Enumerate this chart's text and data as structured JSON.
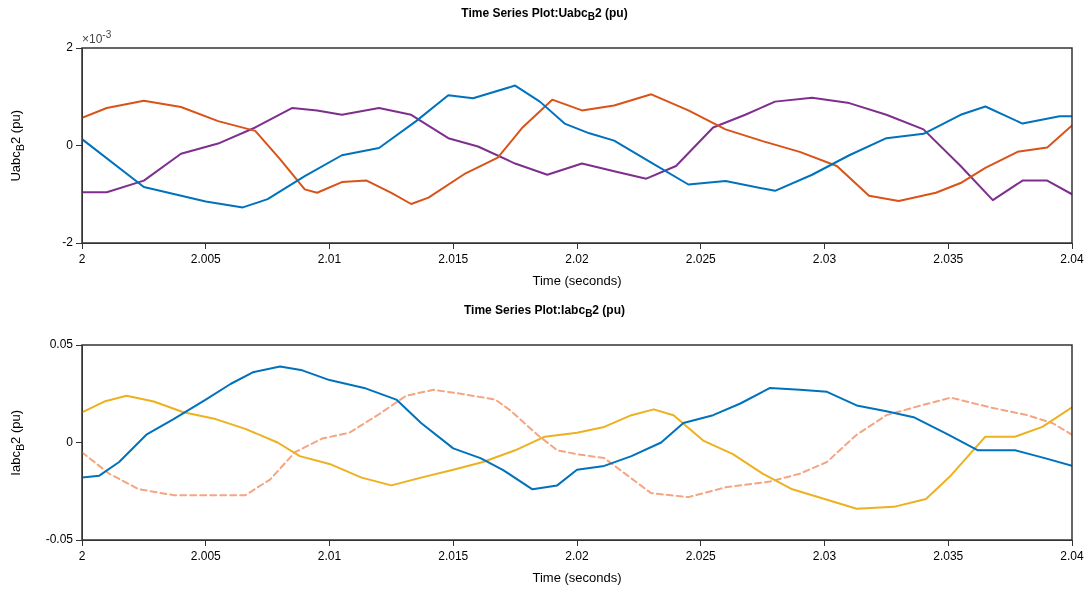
{
  "chart_data": [
    {
      "type": "line",
      "title": "Time Series Plot:Uabc$_{B}$2 (pu)",
      "xlabel": "Time (seconds)",
      "ylabel": "Uabc$_{B}$2 (pu)",
      "annotations": [
        "×10$^{-3}$"
      ],
      "xlim": [
        2,
        2.04
      ],
      "xticks": [
        2,
        2.005,
        2.01,
        2.015,
        2.02,
        2.025,
        2.03,
        2.035,
        2.04
      ],
      "ylim": [
        -2,
        2
      ],
      "yticks": [
        -2,
        0,
        2
      ],
      "grid": false,
      "legend": false,
      "marker": "none",
      "line_style": "solid",
      "series": [
        {
          "color": "#0072bd",
          "x": [
            2,
            2.0025,
            2.005,
            2.0065,
            2.0075,
            2.009,
            2.0105,
            2.012,
            2.0135,
            2.0148,
            2.0158,
            2.0175,
            2.0185,
            2.0195,
            2.0205,
            2.0215,
            2.023,
            2.0245,
            2.026,
            2.028,
            2.0295,
            2.031,
            2.0325,
            2.034,
            2.0355,
            2.0365,
            2.038,
            2.0395,
            2.04
          ],
          "values": [
            0.13,
            -0.85,
            -1.15,
            -1.27,
            -1.1,
            -0.63,
            -0.2,
            -0.05,
            0.5,
            1.03,
            0.97,
            1.23,
            0.9,
            0.45,
            0.25,
            0.1,
            -0.35,
            -0.8,
            -0.73,
            -0.93,
            -0.6,
            -0.2,
            0.15,
            0.24,
            0.63,
            0.8,
            0.45,
            0.6,
            0.6
          ]
        },
        {
          "color": "#d95319",
          "x": [
            2,
            2.001,
            2.0025,
            2.004,
            2.0055,
            2.007,
            2.008,
            2.009,
            2.0095,
            2.0105,
            2.0115,
            2.0125,
            2.0133,
            2.014,
            2.0155,
            2.0168,
            2.0178,
            2.019,
            2.0202,
            2.0215,
            2.023,
            2.0245,
            2.026,
            2.0275,
            2.029,
            2.0305,
            2.0318,
            2.033,
            2.0345,
            2.0355,
            2.0365,
            2.0378,
            2.039,
            2.04
          ],
          "values": [
            0.57,
            0.77,
            0.92,
            0.79,
            0.5,
            0.3,
            -0.28,
            -0.9,
            -0.97,
            -0.75,
            -0.72,
            -0.97,
            -1.2,
            -1.07,
            -0.57,
            -0.25,
            0.37,
            0.94,
            0.72,
            0.82,
            1.05,
            0.72,
            0.33,
            0.09,
            -0.13,
            -0.42,
            -1.03,
            -1.14,
            -0.97,
            -0.77,
            -0.46,
            -0.13,
            -0.04,
            0.41
          ]
        },
        {
          "color": "#7e2f8e",
          "x": [
            2,
            2.001,
            2.0025,
            2.004,
            2.0055,
            2.007,
            2.0085,
            2.0095,
            2.0105,
            2.012,
            2.0133,
            2.0148,
            2.016,
            2.0175,
            2.0188,
            2.0202,
            2.0215,
            2.0228,
            2.024,
            2.0255,
            2.0268,
            2.028,
            2.0295,
            2.031,
            2.0325,
            2.034,
            2.0355,
            2.0368,
            2.038,
            2.039,
            2.04
          ],
          "values": [
            -0.96,
            -0.96,
            -0.72,
            -0.17,
            0.04,
            0.37,
            0.77,
            0.72,
            0.63,
            0.77,
            0.63,
            0.15,
            -0.02,
            -0.37,
            -0.6,
            -0.37,
            -0.53,
            -0.68,
            -0.42,
            0.37,
            0.63,
            0.9,
            0.98,
            0.87,
            0.63,
            0.33,
            -0.42,
            -1.12,
            -0.72,
            -0.72,
            -1.0
          ]
        }
      ]
    },
    {
      "type": "line",
      "title": "Time Series Plot:Iabc$_{B}$2 (pu)",
      "xlabel": "Time (seconds)",
      "ylabel": "Iabc$_{B}$2 (pu)",
      "xlim": [
        2,
        2.04
      ],
      "xticks": [
        2,
        2.005,
        2.01,
        2.015,
        2.02,
        2.025,
        2.03,
        2.035,
        2.04
      ],
      "ylim": [
        -0.05,
        0.05
      ],
      "yticks": [
        -0.05,
        0,
        0.05
      ],
      "grid": false,
      "legend": false,
      "marker": "none",
      "series": [
        {
          "color": "#0072bd",
          "line_style": "solid",
          "x": [
            2,
            2.0007,
            2.0015,
            2.0026,
            2.0037,
            2.005,
            2.006,
            2.0069,
            2.008,
            2.0089,
            2.01,
            2.0114,
            2.0127,
            2.0137,
            2.015,
            2.0161,
            2.017,
            2.0182,
            2.0192,
            2.02,
            2.0211,
            2.0222,
            2.0234,
            2.0243,
            2.0255,
            2.0266,
            2.0278,
            2.029,
            2.0301,
            2.0313,
            2.0325,
            2.0336,
            2.035,
            2.0362,
            2.0377,
            2.0389,
            2.04
          ],
          "values": [
            -0.018,
            -0.017,
            -0.01,
            0.004,
            0.012,
            0.022,
            0.03,
            0.036,
            0.039,
            0.037,
            0.032,
            0.028,
            0.022,
            0.01,
            -0.003,
            -0.008,
            -0.014,
            -0.024,
            -0.022,
            -0.014,
            -0.012,
            -0.007,
            0,
            0.01,
            0.014,
            0.02,
            0.028,
            0.027,
            0.026,
            0.019,
            0.016,
            0.013,
            0.004,
            -0.004,
            -0.004,
            -0.008,
            -0.012
          ]
        },
        {
          "color": "#edb120",
          "line_style": "solid",
          "x": [
            2,
            2.0009,
            2.0018,
            2.0029,
            2.0041,
            2.0054,
            2.0066,
            2.0079,
            2.0088,
            2.01,
            2.0113,
            2.0125,
            2.0137,
            2.015,
            2.0162,
            2.0175,
            2.0187,
            2.02,
            2.0211,
            2.0222,
            2.0231,
            2.0239,
            2.0251,
            2.0263,
            2.0275,
            2.0287,
            2.03,
            2.0313,
            2.0328,
            2.0341,
            2.0351,
            2.0365,
            2.0377,
            2.0388,
            2.04
          ],
          "values": [
            0.0155,
            0.021,
            0.024,
            0.021,
            0.0155,
            0.012,
            0.007,
            0,
            -0.007,
            -0.011,
            -0.018,
            -0.022,
            -0.018,
            -0.014,
            -0.01,
            -0.004,
            0.003,
            0.005,
            0.008,
            0.014,
            0.017,
            0.014,
            0.001,
            -0.006,
            -0.016,
            -0.024,
            -0.029,
            -0.034,
            -0.033,
            -0.029,
            -0.017,
            0.003,
            0.003,
            0.008,
            0.018
          ]
        },
        {
          "color": "#f4a582",
          "line_style": "dashed",
          "x": [
            2,
            2.0011,
            2.0023,
            2.0037,
            2.0052,
            2.0066,
            2.0076,
            2.0086,
            2.0097,
            2.0108,
            2.012,
            2.0131,
            2.0142,
            2.0153,
            2.0167,
            2.0173,
            2.0184,
            2.0192,
            2.02,
            2.0211,
            2.023,
            2.0245,
            2.026,
            2.0278,
            2.029,
            2.0301,
            2.0313,
            2.0325,
            2.0339,
            2.0351,
            2.0367,
            2.0382,
            2.0392,
            2.04
          ],
          "values": [
            -0.005,
            -0.016,
            -0.024,
            -0.027,
            -0.027,
            -0.027,
            -0.019,
            -0.005,
            0.002,
            0.005,
            0.0145,
            0.024,
            0.027,
            0.025,
            0.022,
            0.0165,
            0.004,
            -0.004,
            -0.006,
            -0.008,
            -0.026,
            -0.028,
            -0.023,
            -0.02,
            -0.016,
            -0.01,
            0.004,
            0.014,
            0.019,
            0.023,
            0.018,
            0.014,
            0.01,
            0.004
          ]
        }
      ]
    }
  ]
}
